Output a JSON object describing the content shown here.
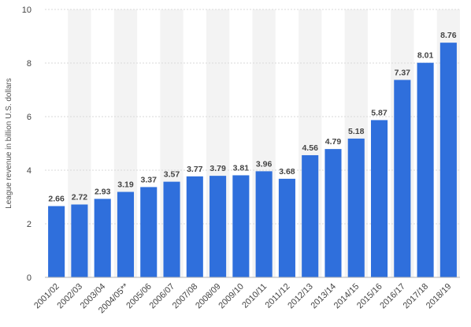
{
  "chart_data": {
    "type": "bar",
    "title": "",
    "xlabel": "",
    "ylabel": "League revenue in billion U.S. dollars",
    "categories": [
      "2001/02",
      "2002/03",
      "2003/04",
      "2004/05**",
      "2005/06",
      "2006/07",
      "2007/08",
      "2008/09",
      "2009/10",
      "2010/11",
      "2011/12",
      "2012/13",
      "2013/14",
      "2014/15",
      "2015/16",
      "2016/17",
      "2017/18",
      "2018/19"
    ],
    "values": [
      2.66,
      2.72,
      2.93,
      3.19,
      3.37,
      3.57,
      3.77,
      3.79,
      3.81,
      3.96,
      3.68,
      4.56,
      4.79,
      5.18,
      5.87,
      7.37,
      8.01,
      8.76
    ],
    "value_labels": [
      "2.66",
      "2.72",
      "2.93",
      "3.19",
      "3.37",
      "3.57",
      "3.77",
      "3.79",
      "3.81",
      "3.96",
      "3.68",
      "4.56",
      "4.79",
      "5.18",
      "5.87",
      "7.37",
      "8.01",
      "8.76"
    ],
    "yticks": [
      0,
      2,
      4,
      6,
      8,
      10
    ],
    "ylim": [
      0,
      10
    ],
    "grid": true,
    "legend": "none",
    "bar_color": "#2f6fdc",
    "band_color": "#f3f3f3",
    "grid_color": "#d8d8d8"
  }
}
